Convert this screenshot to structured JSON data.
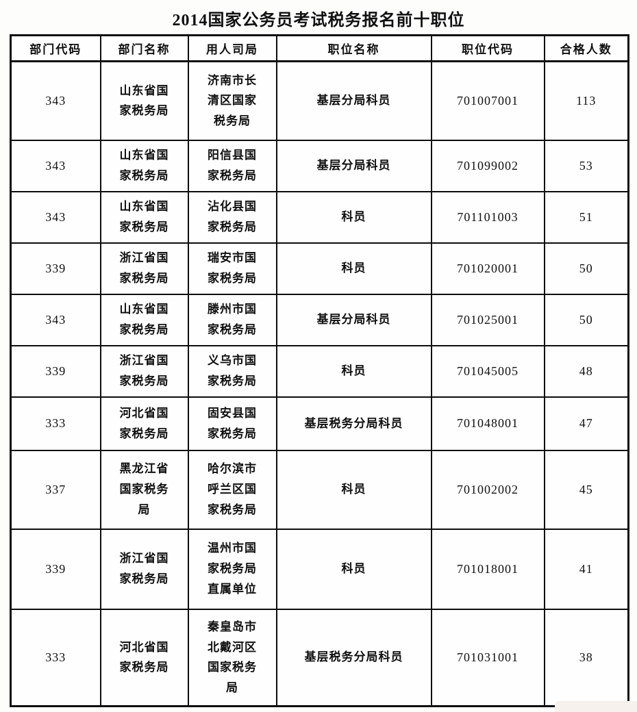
{
  "title": "2014国家公务员考试税务报名前十职位",
  "colors": {
    "border": "#0c0c0c",
    "background": "#fdfdfc",
    "smudge": "#f7f1ee"
  },
  "table": {
    "headers": [
      "部门代码",
      "部门名称",
      "用人司局",
      "职位名称",
      "职位代码",
      "合格人数"
    ],
    "rows": [
      [
        "343",
        "山东省国家税务局",
        "济南市长清区国家税务局",
        "基层分局科员",
        "701007001",
        "113"
      ],
      [
        "343",
        "山东省国家税务局",
        "阳信县国家税务局",
        "基层分局科员",
        "701099002",
        "53"
      ],
      [
        "343",
        "山东省国家税务局",
        "沾化县国家税务局",
        "科员",
        "701101003",
        "51"
      ],
      [
        "339",
        "浙江省国家税务局",
        "瑞安市国家税务局",
        "科员",
        "701020001",
        "50"
      ],
      [
        "343",
        "山东省国家税务局",
        "滕州市国家税务局",
        "基层分局科员",
        "701025001",
        "50"
      ],
      [
        "339",
        "浙江省国家税务局",
        "义乌市国家税务局",
        "科员",
        "701045005",
        "48"
      ],
      [
        "333",
        "河北省国家税务局",
        "固安县国家税务局",
        "基层税务分局科员",
        "701048001",
        "47"
      ],
      [
        "337",
        "黑龙江省国家税务局",
        "哈尔滨市呼兰区国家税务局",
        "科员",
        "701002002",
        "45"
      ],
      [
        "339",
        "浙江省国家税务局",
        "温州市国家税务局直属单位",
        "科员",
        "701018001",
        "41"
      ],
      [
        "333",
        "河北省国家税务局",
        "秦皇岛市北戴河区国家税务局",
        "基层税务分局科员",
        "701031001",
        "38"
      ]
    ]
  }
}
